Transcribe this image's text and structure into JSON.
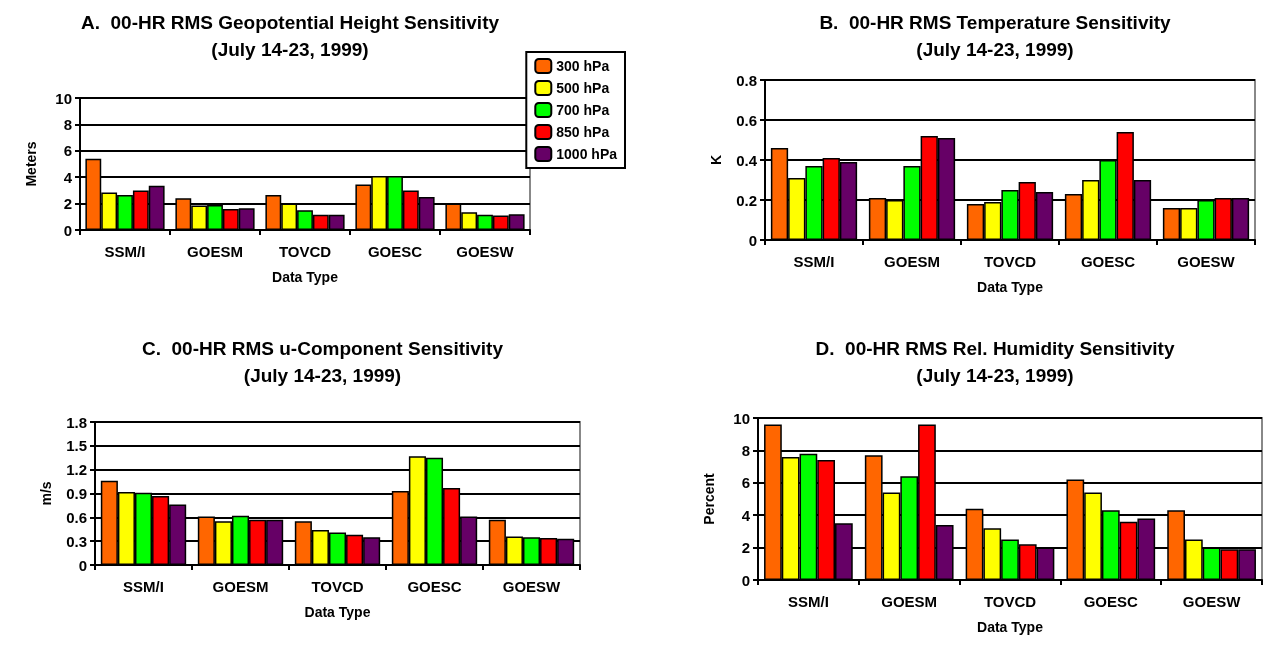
{
  "chart_data": [
    {
      "type": "bar",
      "title": "A.  00-HR RMS Geopotential Height Sensitivity",
      "subtitle": "(July 14-23, 1999)",
      "xlabel": "Data Type",
      "ylabel": "Meters",
      "categories": [
        "SSM/I",
        "GOESM",
        "TOVCD",
        "GOESC",
        "GOESW"
      ],
      "ylim": [
        0,
        10
      ],
      "yticks": [
        0,
        2,
        4,
        6,
        8,
        10
      ],
      "grid": "y",
      "legend": "right",
      "series": [
        {
          "name": "300 hPa",
          "color": "#ff6600",
          "values": [
            5.4,
            2.4,
            2.65,
            3.45,
            2.0
          ]
        },
        {
          "name": "500 hPa",
          "color": "#ffff00",
          "values": [
            2.85,
            1.85,
            2.0,
            4.1,
            1.35
          ]
        },
        {
          "name": "700 hPa",
          "color": "#00ff00",
          "values": [
            2.65,
            1.9,
            1.5,
            4.1,
            1.15
          ]
        },
        {
          "name": "850 hPa",
          "color": "#ff0000",
          "values": [
            3.0,
            1.6,
            1.15,
            3.0,
            1.1
          ]
        },
        {
          "name": "1000 hPa",
          "color": "#660066",
          "values": [
            3.35,
            1.65,
            1.15,
            2.5,
            1.2
          ]
        }
      ]
    },
    {
      "type": "bar",
      "title": "B.  00-HR RMS Temperature Sensitivity",
      "subtitle": "(July 14-23, 1999)",
      "xlabel": "Data Type",
      "ylabel": "K",
      "categories": [
        "SSM/I",
        "GOESM",
        "TOVCD",
        "GOESC",
        "GOESW"
      ],
      "ylim": [
        0,
        0.8
      ],
      "yticks": [
        0,
        0.2,
        0.4,
        0.6,
        0.8
      ],
      "grid": "y",
      "series": [
        {
          "color": "#ff6600",
          "values": [
            0.46,
            0.21,
            0.18,
            0.23,
            0.16
          ]
        },
        {
          "color": "#ffff00",
          "values": [
            0.31,
            0.2,
            0.19,
            0.3,
            0.16
          ]
        },
        {
          "color": "#00ff00",
          "values": [
            0.37,
            0.37,
            0.25,
            0.4,
            0.2
          ]
        },
        {
          "color": "#ff0000",
          "values": [
            0.41,
            0.52,
            0.29,
            0.54,
            0.21
          ]
        },
        {
          "color": "#660066",
          "values": [
            0.39,
            0.51,
            0.24,
            0.3,
            0.21
          ]
        }
      ]
    },
    {
      "type": "bar",
      "title": "C.  00-HR RMS u-Component Sensitivity",
      "subtitle": "(July 14-23, 1999)",
      "xlabel": "Data Type",
      "ylabel": "m/s",
      "categories": [
        "SSM/I",
        "GOESM",
        "TOVCD",
        "GOESC",
        "GOESW"
      ],
      "ylim": [
        0,
        1.8
      ],
      "yticks": [
        0,
        0.3,
        0.6,
        0.9,
        1.2,
        1.5,
        1.8
      ],
      "grid": "y",
      "series": [
        {
          "color": "#ff6600",
          "values": [
            1.06,
            0.61,
            0.55,
            0.93,
            0.57
          ]
        },
        {
          "color": "#ffff00",
          "values": [
            0.92,
            0.55,
            0.44,
            1.37,
            0.36
          ]
        },
        {
          "color": "#00ff00",
          "values": [
            0.91,
            0.62,
            0.41,
            1.35,
            0.35
          ]
        },
        {
          "color": "#ff0000",
          "values": [
            0.87,
            0.57,
            0.38,
            0.97,
            0.34
          ]
        },
        {
          "color": "#660066",
          "values": [
            0.76,
            0.57,
            0.35,
            0.61,
            0.33
          ]
        }
      ]
    },
    {
      "type": "bar",
      "title": "D.  00-HR RMS Rel. Humidity Sensitivity",
      "subtitle": "(July 14-23, 1999)",
      "xlabel": "Data Type",
      "ylabel": "Percent",
      "categories": [
        "SSM/I",
        "GOESM",
        "TOVCD",
        "GOESC",
        "GOESW"
      ],
      "ylim": [
        0,
        10
      ],
      "yticks": [
        0,
        2,
        4,
        6,
        8,
        10
      ],
      "grid": "y",
      "series": [
        {
          "color": "#ff6600",
          "values": [
            9.6,
            7.7,
            4.4,
            6.2,
            4.3
          ]
        },
        {
          "color": "#ffff00",
          "values": [
            7.6,
            5.4,
            3.2,
            5.4,
            2.5
          ]
        },
        {
          "color": "#00ff00",
          "values": [
            7.8,
            6.4,
            2.5,
            4.3,
            2.0
          ]
        },
        {
          "color": "#ff0000",
          "values": [
            7.4,
            9.6,
            2.2,
            3.6,
            1.9
          ]
        },
        {
          "color": "#660066",
          "values": [
            3.5,
            3.4,
            2.0,
            3.8,
            1.9
          ]
        }
      ]
    }
  ]
}
